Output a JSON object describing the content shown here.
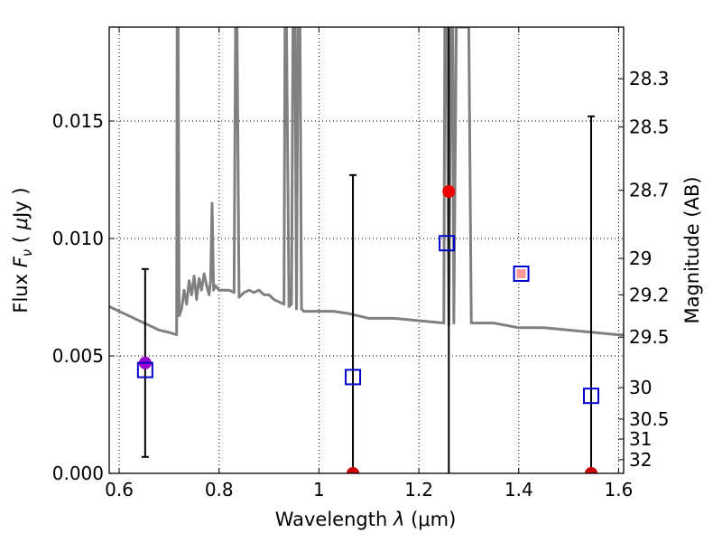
{
  "chart_data": {
    "type": "scatter",
    "title": "",
    "xlabel": "Wavelength  λ (μm)",
    "ylabel": "Flux  F_ν  ( μJy )",
    "ylabel_parts": {
      "prefix": "Flux  ",
      "symbol": "F",
      "subscript": "ν",
      "unit_open": "  ( ",
      "unit_mu": "μ",
      "unit_rest": "Jy )"
    },
    "xlabel_parts": {
      "prefix": "Wavelength  ",
      "symbol": "λ",
      "unit": " (μm)"
    },
    "ylabel_right": "Magnitude (AB)",
    "xlim": [
      0.58,
      1.61
    ],
    "ylim": [
      0.0,
      0.019
    ],
    "grid": true,
    "x_ticks": [
      0.6,
      0.8,
      1.0,
      1.2,
      1.4,
      1.6
    ],
    "x_tick_labels": [
      "0.6",
      "0.8",
      "1",
      "1.2",
      "1.4",
      "1.6"
    ],
    "y_ticks": [
      0.0,
      0.005,
      0.01,
      0.015
    ],
    "y_tick_labels": [
      "0.000",
      "0.005",
      "0.010",
      "0.015"
    ],
    "right_ticks": [
      {
        "label": "28.3",
        "flux": 0.0168
      },
      {
        "label": "28.5",
        "flux": 0.01475
      },
      {
        "label": "28.7",
        "flux": 0.01205
      },
      {
        "label": "29",
        "flux": 0.00915
      },
      {
        "label": "29.2",
        "flux": 0.0076
      },
      {
        "label": "29.5",
        "flux": 0.0058
      },
      {
        "label": "30",
        "flux": 0.00365
      },
      {
        "label": "30.5",
        "flux": 0.00231
      },
      {
        "label": "31",
        "flux": 0.00146
      },
      {
        "label": "32",
        "flux": 0.00058
      }
    ],
    "series": [
      {
        "kind": "template_spectrum",
        "color": "#808080",
        "points": [
          [
            0.58,
            0.0071
          ],
          [
            0.6,
            0.0069
          ],
          [
            0.62,
            0.0067
          ],
          [
            0.64,
            0.0065
          ],
          [
            0.66,
            0.0063
          ],
          [
            0.68,
            0.0061
          ],
          [
            0.7,
            0.006
          ],
          [
            0.715,
            0.0059
          ],
          [
            0.716,
            0.019
          ],
          [
            0.718,
            0.019
          ],
          [
            0.72,
            0.0067
          ],
          [
            0.725,
            0.007
          ],
          [
            0.73,
            0.0078
          ],
          [
            0.735,
            0.0072
          ],
          [
            0.74,
            0.0082
          ],
          [
            0.745,
            0.0076
          ],
          [
            0.75,
            0.0084
          ],
          [
            0.755,
            0.0074
          ],
          [
            0.76,
            0.0083
          ],
          [
            0.765,
            0.0078
          ],
          [
            0.77,
            0.0085
          ],
          [
            0.775,
            0.008
          ],
          [
            0.78,
            0.0076
          ],
          [
            0.783,
            0.0082
          ],
          [
            0.786,
            0.0115
          ],
          [
            0.789,
            0.0078
          ],
          [
            0.792,
            0.008
          ],
          [
            0.8,
            0.0078
          ],
          [
            0.81,
            0.0078
          ],
          [
            0.82,
            0.0078
          ],
          [
            0.83,
            0.0077
          ],
          [
            0.833,
            0.019
          ],
          [
            0.836,
            0.019
          ],
          [
            0.84,
            0.0075
          ],
          [
            0.85,
            0.0077
          ],
          [
            0.86,
            0.0078
          ],
          [
            0.87,
            0.0077
          ],
          [
            0.88,
            0.0078
          ],
          [
            0.89,
            0.0076
          ],
          [
            0.9,
            0.0076
          ],
          [
            0.91,
            0.0074
          ],
          [
            0.92,
            0.0073
          ],
          [
            0.93,
            0.0072
          ],
          [
            0.932,
            0.019
          ],
          [
            0.935,
            0.019
          ],
          [
            0.94,
            0.0071
          ],
          [
            0.945,
            0.0072
          ],
          [
            0.948,
            0.019
          ],
          [
            0.952,
            0.019
          ],
          [
            0.955,
            0.007
          ],
          [
            0.958,
            0.019
          ],
          [
            0.962,
            0.019
          ],
          [
            0.965,
            0.007
          ],
          [
            0.97,
            0.0069
          ],
          [
            1.0,
            0.0069
          ],
          [
            1.03,
            0.0069
          ],
          [
            1.06,
            0.0068
          ],
          [
            1.1,
            0.0066
          ],
          [
            1.15,
            0.0066
          ],
          [
            1.2,
            0.0065
          ],
          [
            1.25,
            0.0064
          ],
          [
            1.252,
            0.019
          ],
          [
            1.256,
            0.019
          ],
          [
            1.26,
            0.0063
          ],
          [
            1.265,
            0.019
          ],
          [
            1.268,
            0.019
          ],
          [
            1.27,
            0.0064
          ],
          [
            1.275,
            0.019
          ],
          [
            1.3,
            0.019
          ],
          [
            1.305,
            0.0064
          ],
          [
            1.35,
            0.0064
          ],
          [
            1.4,
            0.0062
          ],
          [
            1.45,
            0.0062
          ],
          [
            1.5,
            0.0061
          ],
          [
            1.55,
            0.006
          ],
          [
            1.6,
            0.0059
          ],
          [
            1.61,
            0.0059
          ]
        ]
      },
      {
        "kind": "observed_flux",
        "marker": "circle",
        "points": [
          {
            "x": 0.652,
            "y": 0.0047,
            "color": "#9900cc"
          },
          {
            "x": 1.068,
            "y": 0.0,
            "color": "#cc0000"
          },
          {
            "x": 1.26,
            "y": 0.012,
            "color": "#ee0000"
          },
          {
            "x": 1.545,
            "y": 0.0,
            "color": "#cc0000"
          }
        ]
      },
      {
        "kind": "error_bars",
        "color": "#000000",
        "bars": [
          {
            "x": 0.652,
            "low": 0.0007,
            "high": 0.0087
          },
          {
            "x": 1.068,
            "low": 0.0,
            "high": 0.0127
          },
          {
            "x": 1.26,
            "low": 0.0,
            "high": 0.019
          },
          {
            "x": 1.545,
            "low": 0.0,
            "high": 0.0152
          }
        ]
      },
      {
        "kind": "model_flux",
        "marker": "open-square",
        "color": "#0000cc",
        "points": [
          {
            "x": 0.652,
            "y": 0.0044
          },
          {
            "x": 1.068,
            "y": 0.0041
          },
          {
            "x": 1.256,
            "y": 0.0098
          },
          {
            "x": 1.405,
            "y": 0.0085
          },
          {
            "x": 1.545,
            "y": 0.0033
          }
        ]
      }
    ],
    "extra_points": [
      {
        "x": 1.405,
        "y": 0.0085,
        "color": "#ff9999",
        "marker": "small-square"
      }
    ]
  }
}
